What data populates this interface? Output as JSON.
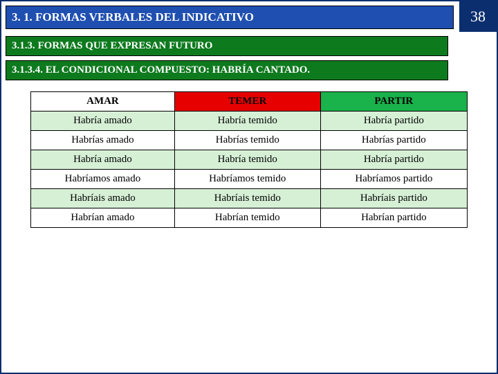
{
  "page_number": "38",
  "colors": {
    "badge_bg": "#0a2e6e",
    "header1_bg": "#1f4fb0",
    "header2_bg": "#0e7a1e",
    "header3_bg": "#0e7a1e",
    "col1_header_bg": "#ffffff",
    "col2_header_bg": "#e60000",
    "col3_header_bg": "#19b24b",
    "row_odd_bg": "#d6f0d6",
    "row_even_bg": "#ffffff"
  },
  "headers": {
    "h1": "3. 1. FORMAS VERBALES DEL INDICATIVO",
    "h2": "3.1.3.  FORMAS QUE EXPRESAN FUTURO",
    "h3": "3.1.3.4. EL CONDICIONAL COMPUESTO: HABRÍA CANTADO."
  },
  "table": {
    "columns": [
      "AMAR",
      "TEMER",
      "PARTIR"
    ],
    "rows": [
      [
        "Habría amado",
        "Habría temido",
        "Habría partido"
      ],
      [
        "Habrías amado",
        "Habrías temido",
        "Habrías partido"
      ],
      [
        "Habría amado",
        "Habría temido",
        "Habría partido"
      ],
      [
        "Habríamos amado",
        "Habríamos temido",
        "Habríamos partido"
      ],
      [
        "Habríais amado",
        "Habríais temido",
        "Habríais partido"
      ],
      [
        "Habrían amado",
        "Habrían temido",
        "Habrían partido"
      ]
    ]
  }
}
